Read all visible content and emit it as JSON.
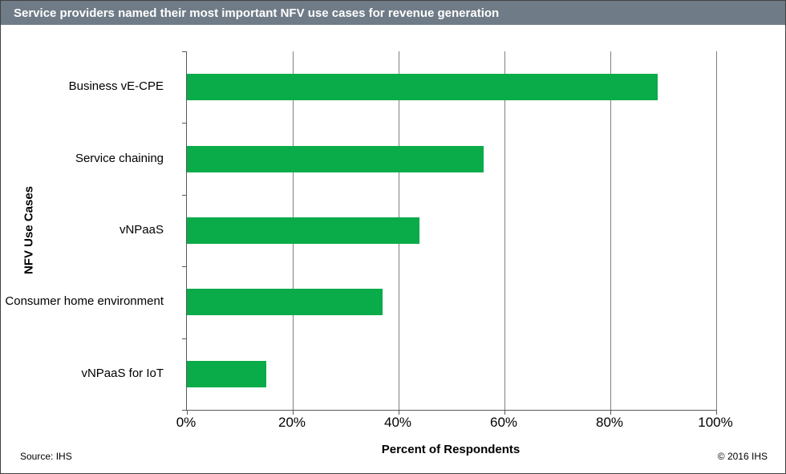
{
  "title": "Service providers named their most important NFV use cases for revenue generation",
  "footer": {
    "source": "Source: IHS",
    "copyright": "© 2016 IHS"
  },
  "colors": {
    "title_bar_bg": "#6f7b87",
    "bar_green": "#0aab49",
    "gridline": "#808080",
    "axis": "#595959"
  },
  "chart_data": {
    "type": "bar",
    "orientation": "horizontal",
    "title": "Service providers named their most important NFV use cases for revenue generation",
    "categories": [
      "Business vE-CPE",
      "Service chaining",
      "vNPaaS",
      "Consumer home environment",
      "vNPaaS for IoT"
    ],
    "values": [
      89,
      56,
      44,
      37,
      15
    ],
    "xlabel": "Percent of Respondents",
    "ylabel": "NFV Use Cases",
    "xlim": [
      0,
      100
    ],
    "xtick_labels": [
      "0%",
      "20%",
      "40%",
      "60%",
      "80%",
      "100%"
    ],
    "xtick_values": [
      0,
      20,
      40,
      60,
      80,
      100
    ],
    "grid": true,
    "legend": false
  }
}
